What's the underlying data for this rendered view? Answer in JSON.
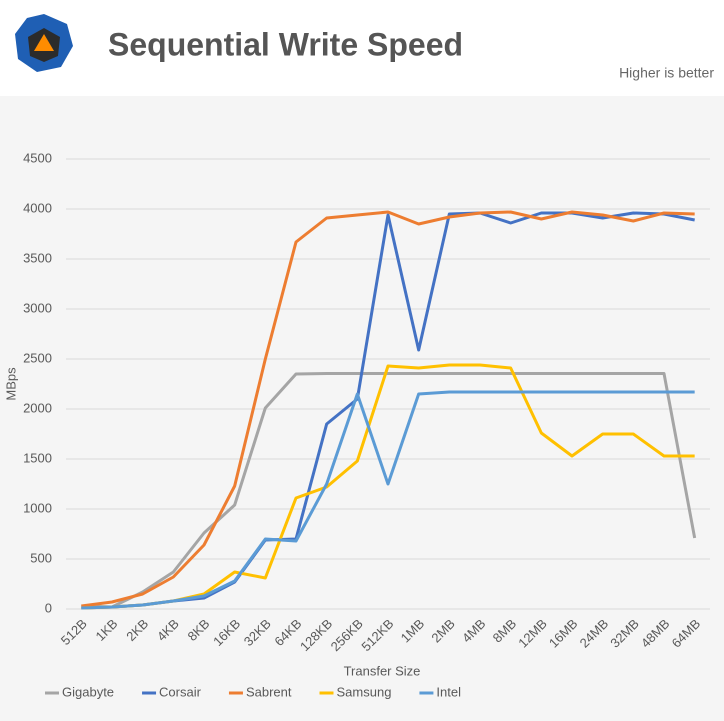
{
  "chart_data": {
    "type": "line",
    "title": "Sequential Write Speed",
    "subtitle": "Higher is better",
    "x_label": "Transfer Size",
    "y_label": "MBps",
    "categories": [
      "512B",
      "1KB",
      "2KB",
      "4KB",
      "8KB",
      "16KB",
      "32KB",
      "64KB",
      "128KB",
      "256KB",
      "512KB",
      "1MB",
      "2MB",
      "4MB",
      "8MB",
      "12MB",
      "16MB",
      "24MB",
      "32MB",
      "48MB",
      "64MB"
    ],
    "series": [
      {
        "name": "Gigabyte",
        "color": "#a5a5a5",
        "values": [
          30,
          20,
          170,
          370,
          760,
          1040,
          2010,
          2350,
          2355,
          2355,
          2355,
          2355,
          2355,
          2355,
          2355,
          2355,
          2355,
          2355,
          2355,
          2355,
          710
        ]
      },
      {
        "name": "Corsair",
        "color": "#4472c4",
        "values": [
          10,
          20,
          40,
          80,
          110,
          270,
          690,
          700,
          1850,
          2100,
          3940,
          2590,
          3950,
          3960,
          3860,
          3960,
          3960,
          3910,
          3960,
          3950,
          3890
        ]
      },
      {
        "name": "Sabrent",
        "color": "#ed7d31",
        "values": [
          30,
          70,
          150,
          320,
          640,
          1230,
          2500,
          3670,
          3910,
          3940,
          3970,
          3850,
          3920,
          3960,
          3970,
          3900,
          3970,
          3940,
          3880,
          3960,
          3950
        ]
      },
      {
        "name": "Samsung",
        "color": "#ffc000",
        "values": [
          10,
          20,
          40,
          80,
          150,
          370,
          310,
          1110,
          1220,
          1480,
          2430,
          2410,
          2440,
          2440,
          2410,
          1760,
          1530,
          1750,
          1750,
          1530,
          1530
        ]
      },
      {
        "name": "Intel",
        "color": "#5b9bd5",
        "values": [
          10,
          20,
          40,
          80,
          130,
          280,
          700,
          680,
          1250,
          2150,
          1250,
          2150,
          2170,
          2170,
          2170,
          2170,
          2170,
          2170,
          2170,
          2170,
          2170
        ]
      }
    ],
    "ylim": [
      0,
      4500
    ],
    "yticks": [
      0,
      500,
      1000,
      1500,
      2000,
      2500,
      3000,
      3500,
      4000,
      4500
    ],
    "grid": true,
    "legend": "bottom"
  }
}
